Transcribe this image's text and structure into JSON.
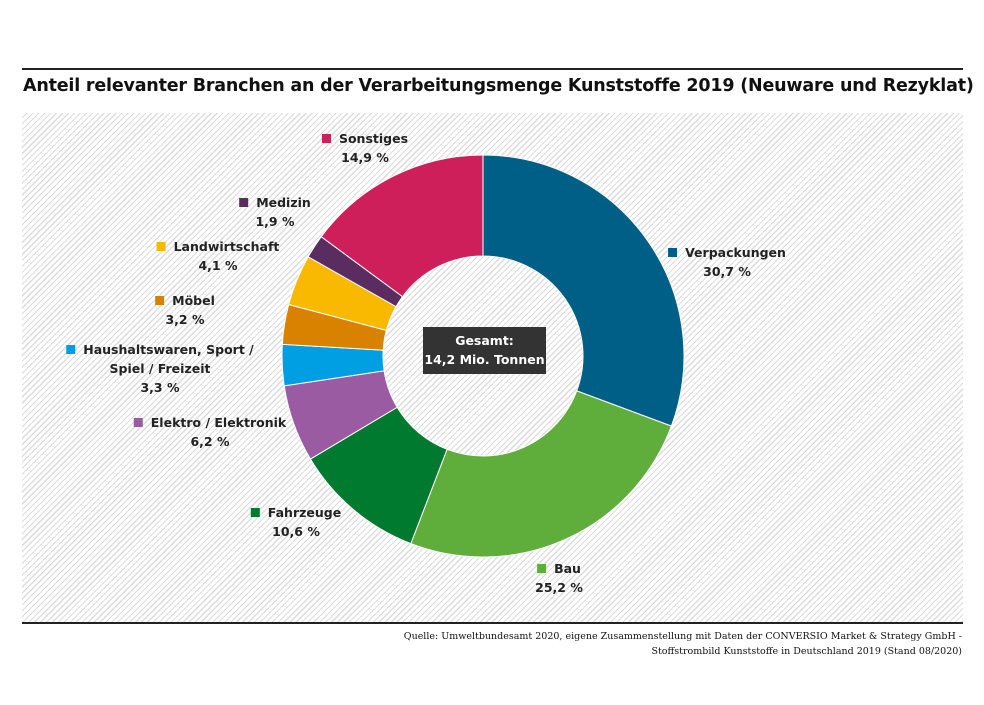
{
  "chart_data": {
    "type": "pie",
    "variant": "donut",
    "title": "Anteil relevanter Branchen an der Verarbeitungsmenge Kunststoffe 2019 (Neuware und Rezyklat)",
    "center_label": [
      "Gesamt:",
      "14,2 Mio. Tonnen"
    ],
    "unit": "%",
    "slices": [
      {
        "name": "Verpackungen",
        "value": 30.7,
        "label": "30,7 %",
        "color": "#005f87"
      },
      {
        "name": "Bau",
        "value": 25.2,
        "label": "25,2 %",
        "color": "#5fad3b"
      },
      {
        "name": "Fahrzeuge",
        "value": 10.6,
        "label": "10,6 %",
        "color": "#007a2e"
      },
      {
        "name": "Elektro / Elektronik",
        "value": 6.2,
        "label": "6,2 %",
        "color": "#9b5ba3"
      },
      {
        "name": "Haushaltswaren, Sport / Spiel / Freizeit",
        "name_lines": [
          "Haushaltswaren, Sport /",
          "Spiel / Freizeit"
        ],
        "value": 3.3,
        "label": "3,3 %",
        "color": "#009fe3"
      },
      {
        "name": "Möbel",
        "value": 3.2,
        "label": "3,2 %",
        "color": "#d98200"
      },
      {
        "name": "Landwirtschaft",
        "value": 4.1,
        "label": "4,1 %",
        "color": "#f9b900"
      },
      {
        "name": "Medizin",
        "value": 1.9,
        "label": "1,9 %",
        "color": "#5b2c5f"
      },
      {
        "name": "Sonstiges",
        "value": 14.9,
        "label": "14,9 %",
        "color": "#ce1f5b"
      }
    ],
    "start": "top",
    "direction": "clockwise",
    "legend": "labels-outside"
  },
  "source": [
    "Quelle: Umweltbundesamt 2020, eigene Zusammenstellung mit Daten der CONVERSIO Market & Strategy GmbH -",
    "Stoffstrombild Kunststoffe in Deutschland 2019 (Stand 08/2020)"
  ]
}
